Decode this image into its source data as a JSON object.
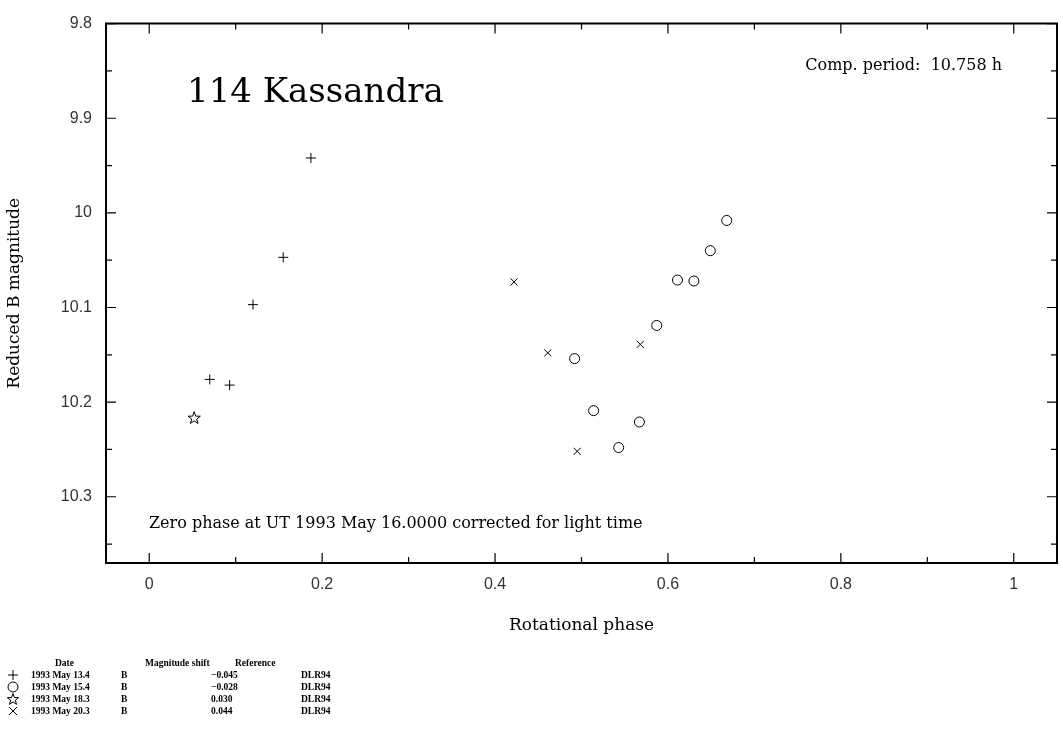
{
  "chart_data": {
    "type": "scatter",
    "title": "114 Kassandra",
    "xlabel": "Rotational phase",
    "ylabel": "Reduced B magnitude",
    "legend_title": "Date\tMagnitude shift\tReference",
    "xlim": [
      -0.05,
      1.05
    ],
    "ylim": [
      10.37,
      9.8
    ],
    "xticks": [
      0,
      {
        "value": 0.1,
        "label": null
      },
      0.2,
      {
        "value": 0.3,
        "label": null
      },
      0.4,
      {
        "value": 0.5,
        "label": null
      },
      0.6,
      {
        "value": 0.7,
        "label": null
      },
      0.8,
      {
        "value": 0.9,
        "label": null
      },
      1
    ],
    "yticks": [
      9.8,
      {
        "value": 9.85,
        "label": null
      },
      9.9,
      {
        "value": 9.95,
        "label": null
      },
      10,
      {
        "value": 10.05,
        "label": null
      },
      10.1,
      {
        "value": 10.15,
        "label": null
      },
      10.2,
      {
        "value": 10.25,
        "label": null
      },
      10.3,
      {
        "value": 10.35,
        "label": null
      }
    ],
    "grid": false,
    "legend": "bottom left",
    "annotations": [
      "Comp. period:  10.758 h",
      "Zero phase at UT 1993 May 16.0000 corrected for light time"
    ],
    "series": [
      {
        "name": "1993 May 13.4\tB\t−0.045\tDLR94",
        "color": "#000000",
        "marker": "plus",
        "x": [
          0.187,
          0.155,
          0.12,
          0.07,
          0.093
        ],
        "values": [
          9.942,
          10.047,
          10.097,
          10.176,
          10.182
        ]
      },
      {
        "name": "1993 May 15.4\tB\t−0.028\tDLR94",
        "color": "#000000",
        "marker": "circle",
        "x": [
          0.668,
          0.649,
          0.611,
          0.63,
          0.587,
          0.492,
          0.514,
          0.567,
          0.543
        ],
        "values": [
          10.008,
          10.04,
          10.071,
          10.072,
          10.119,
          10.154,
          10.209,
          10.221,
          10.248
        ]
      },
      {
        "name": "1993 May 18.3\tB\t0.030\tDLR94",
        "color": "#000000",
        "marker": "star",
        "x": [
          0.052
        ],
        "values": [
          10.217
        ]
      },
      {
        "name": "1993 May 20.3\tB\t0.044\tDLR94",
        "color": "#000000",
        "marker": "cross",
        "x": [
          0.422,
          0.461,
          0.568,
          0.495
        ],
        "values": [
          10.073,
          10.148,
          10.139,
          10.252
        ]
      }
    ]
  }
}
